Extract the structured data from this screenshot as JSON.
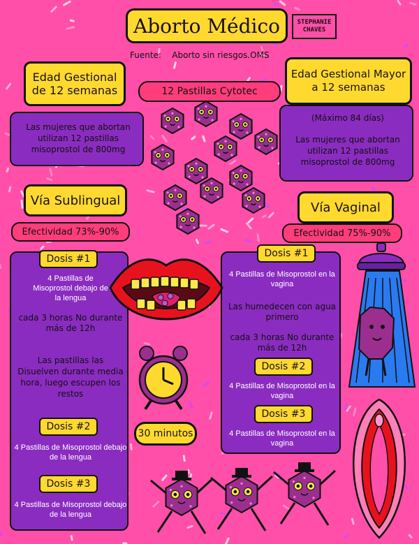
{
  "title": "Aborto Médico",
  "signature": "STEPHANIE CHAVES",
  "source": {
    "label": "Fuente:",
    "value": "Aborto sin riesgos.OMS"
  },
  "center_pills_label": "12 Pastillas Cytotec",
  "left": {
    "gestation_title": "Edad Gestional de 12 semanas",
    "gestation_text": "Las mujeres que abortan utilizan 12 pastillas misoprostol de 800mg",
    "route_title": "Vía Sublingual",
    "effectiveness": "Efectividad 73%-90%",
    "dose1_label": "Dosis #1",
    "dose1_text": "4 Pastillas de Misoprostol debajo de la lengua",
    "interval_text": "cada 3 horas No durante más de 12h",
    "dissolve_text": "Las pastillas las Disuelven durante media hora, luego escupen los restos",
    "dose2_label": "Dosis #2",
    "dose2_text": "4 Pastillas de Misoprostol debajo de la lengua",
    "dose3_label": "Dosis #3",
    "dose3_text": "4 Pastillas de Misoprostol debajo de la lengua"
  },
  "right": {
    "gestation_title": "Edad Gestional Mayor a 12 semanas",
    "max_days": "(Máximo 84 días)",
    "gestation_text": "Las mujeres que abortan utilizan 12 pastillas misoprostol de 800mg",
    "route_title": "Vía Vaginal",
    "effectiveness": "Efectividad 75%-90%",
    "dose1_label": "Dosis #1",
    "dose1_text": "4 Pastillas de Misoprostol en la vagina",
    "moisten_text": "Las humedecen con agua primero",
    "interval_text": "cada 3 horas No durante más de 12h",
    "dose2_label": "Dosis #2",
    "dose2_text": "4 Pastillas de Misoprostol en la vagina",
    "dose3_label": "Dosis #3",
    "dose3_text": "4 Pastillas de Misoprostol en la vagina"
  },
  "clock_label": "30 minutos",
  "colors": {
    "background": "#ff4fa8",
    "yellow": "#ffd92e",
    "purple": "#8b2cc0",
    "pink_pill": "#ff3d7c",
    "tablet": "#9b2f8f"
  }
}
